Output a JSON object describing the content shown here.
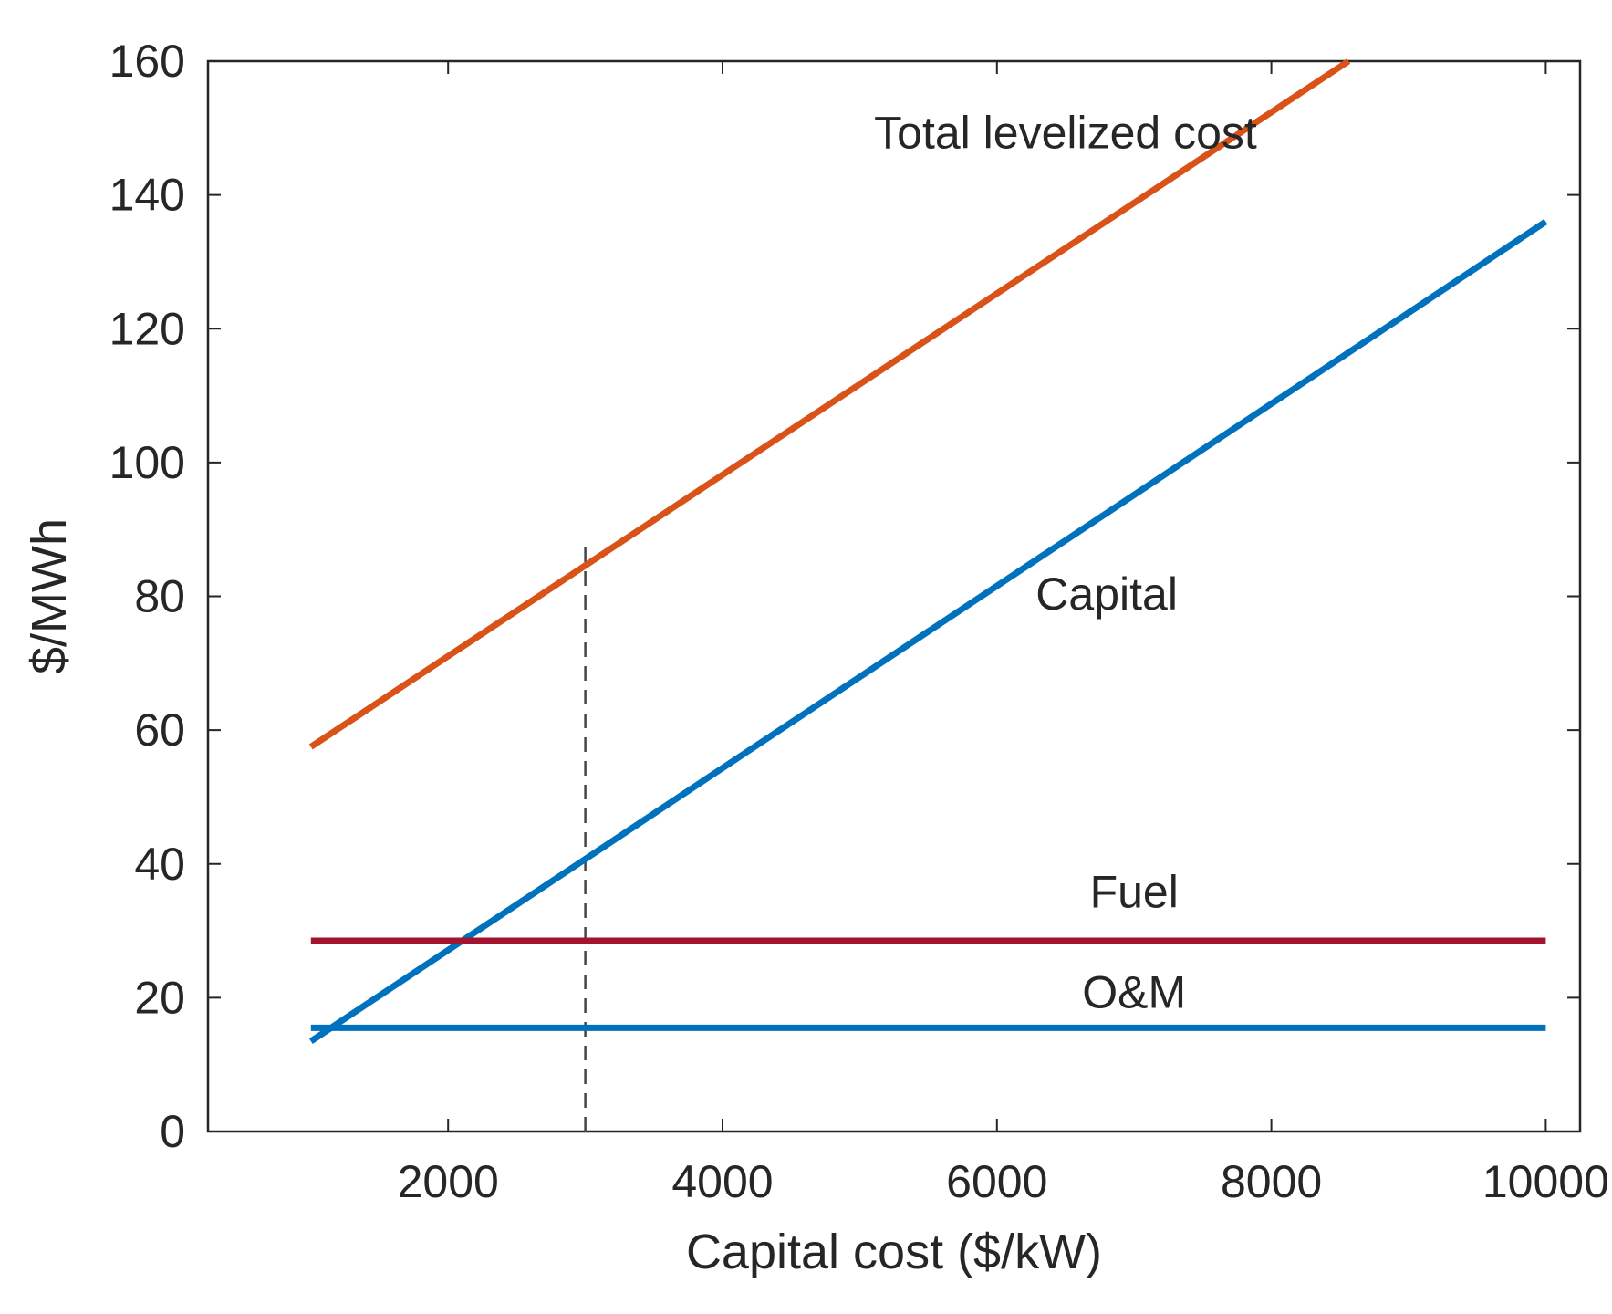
{
  "chart_data": {
    "type": "line",
    "title": "",
    "xlabel": "Capital cost ($/kW)",
    "ylabel": "$/MWh",
    "xlim": [
      250,
      10250
    ],
    "ylim": [
      0,
      160
    ],
    "xticks": [
      2000,
      4000,
      6000,
      8000,
      10000
    ],
    "yticks": [
      0,
      20,
      40,
      60,
      80,
      100,
      120,
      140,
      160
    ],
    "grid": false,
    "legend": "none",
    "series": [
      {
        "name": "Total levelized cost",
        "color": "#D95319",
        "x": [
          1000,
          8563
        ],
        "y": [
          57.5,
          160
        ]
      },
      {
        "name": "Capital",
        "color": "#0072BD",
        "x": [
          1000,
          10000
        ],
        "y": [
          13.5,
          136
        ]
      },
      {
        "name": "Fuel",
        "color": "#A2142F",
        "x": [
          1000,
          10000
        ],
        "y": [
          28.5,
          28.5
        ]
      },
      {
        "name": "O&M",
        "color": "#0072BD",
        "x": [
          1000,
          10000
        ],
        "y": [
          15.5,
          15.5
        ]
      }
    ],
    "reference_line": {
      "x": 3000,
      "y_range": [
        0,
        87.5
      ],
      "style": "dashed",
      "color": "#444444"
    },
    "annotations": [
      {
        "text": "Total levelized cost",
        "x": 6500,
        "y": 147
      },
      {
        "text": "Capital",
        "x": 6800,
        "y": 78
      },
      {
        "text": "Fuel",
        "x": 7000,
        "y": 33.5
      },
      {
        "text": "O&M",
        "x": 7000,
        "y": 18.5
      }
    ]
  }
}
